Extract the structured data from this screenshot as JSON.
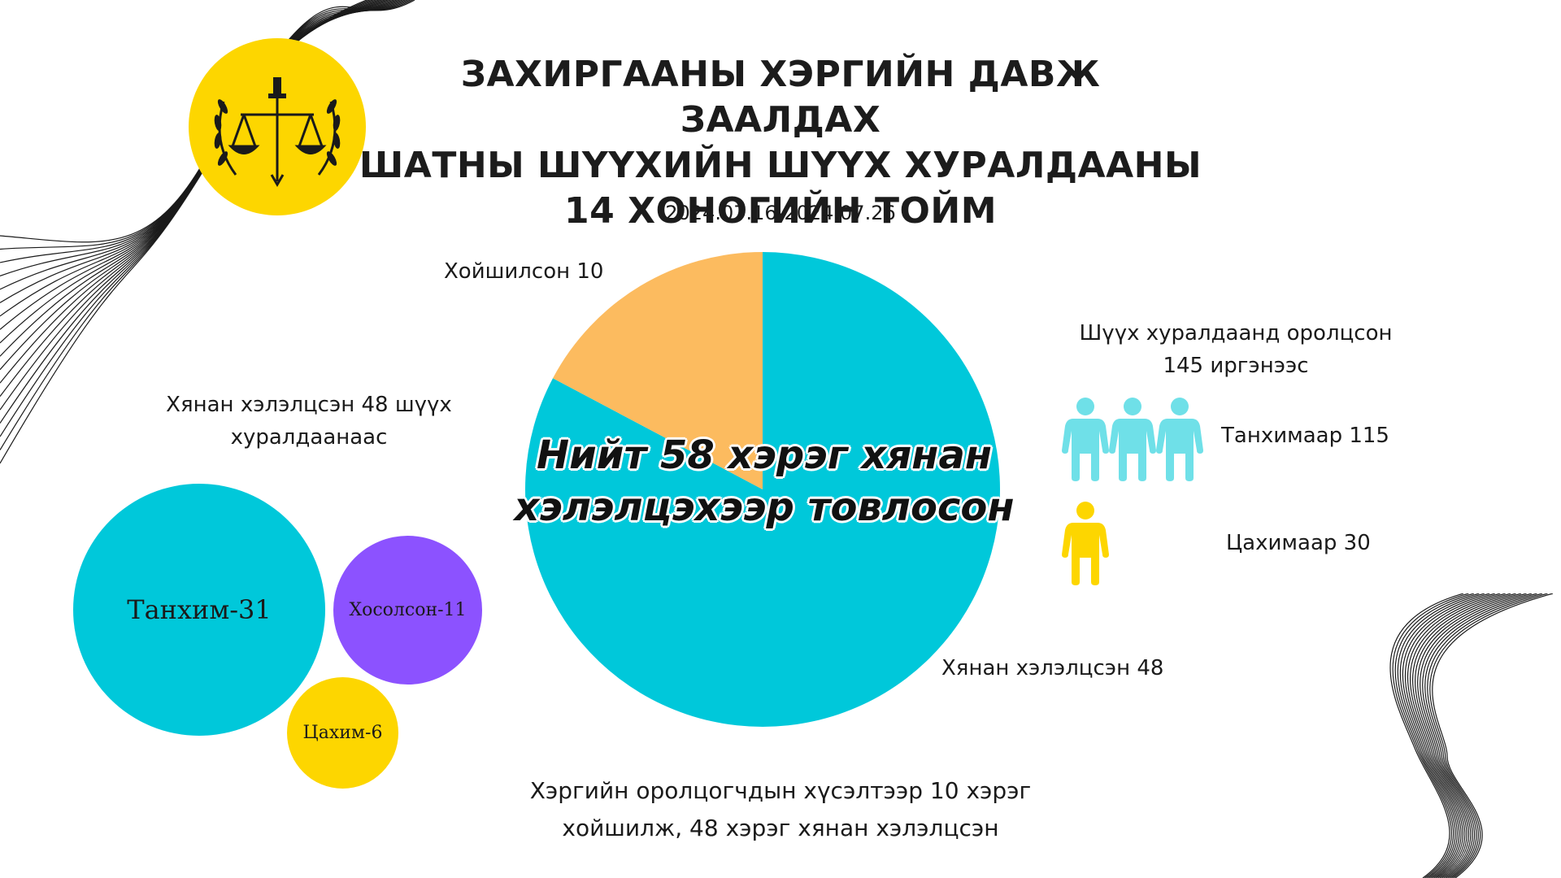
{
  "title": {
    "line1": "ЗАХИРГААНЫ ХЭРГИЙН ДАВЖ ЗААЛДАХ",
    "line2": "ШАТНЫ ШҮҮХИЙН ШҮҮХ ХУРАЛДААНЫ",
    "line3": "14 ХОНОГИЙН ТОЙМ"
  },
  "date_range": "2024.07.16-2024.07.26",
  "pie_center": {
    "line1": "Нийт 58 хэрэг хянан",
    "line2": "хэлэлцэхээр товлосон"
  },
  "pie_labels": {
    "postponed": "Хойшилсон 10",
    "reviewed": "Хянан хэлэлцсэн 48"
  },
  "left_heading": {
    "line1": "Хянан хэлэлцсэн 48 шүүх",
    "line2": "хуралдаанаас"
  },
  "bubbles": {
    "chamber": "Танхим-31",
    "mixed": "Хосолсон-11",
    "online": "Цахим-6"
  },
  "right_heading": {
    "line1": "Шүүх хуралдаанд оролцсон",
    "line2": "145 иргэнээс"
  },
  "participants": {
    "in_person": "Танхимаар 115",
    "online": "Цахимаар 30"
  },
  "footer": {
    "line1": "Хэргийн оролцогчдын хүсэлтээр 10 хэрэг",
    "line2": "хойшилж, 48 хэрэг хянан хэлэлцсэн"
  },
  "colors": {
    "teal": "#00C8DA",
    "orange": "#FCBB5F",
    "purple": "#8C52FF",
    "yellow": "#FDD600",
    "person_teal": "#6FE0E8",
    "emblem_yellow": "#FDD600"
  },
  "icons": {
    "emblem": "court-emblem-icon",
    "person": "person-icon"
  },
  "chart_data": [
    {
      "type": "pie",
      "title": "Нийт 58 хэрэг хянан хэлэлцэхээр товлосон",
      "slices": [
        {
          "name": "Хянан хэлэлцсэн",
          "value": 48,
          "color": "#00C8DA"
        },
        {
          "name": "Хойшилсон",
          "value": 10,
          "color": "#FCBB5F"
        }
      ],
      "total": 58
    },
    {
      "type": "bubble",
      "title": "Хянан хэлэлцсэн 48 шүүх хуралдаанаас",
      "categories": [
        "Танхим",
        "Хосолсон",
        "Цахим"
      ],
      "values": [
        31,
        11,
        6
      ],
      "colors": [
        "#00C8DA",
        "#8C52FF",
        "#FDD600"
      ]
    },
    {
      "type": "pictogram",
      "title": "Шүүх хуралдаанд оролцсон 145 иргэнээс",
      "categories": [
        "Танхимаар",
        "Цахимаар"
      ],
      "values": [
        115,
        30
      ],
      "colors": [
        "#6FE0E8",
        "#FDD600"
      ]
    }
  ]
}
